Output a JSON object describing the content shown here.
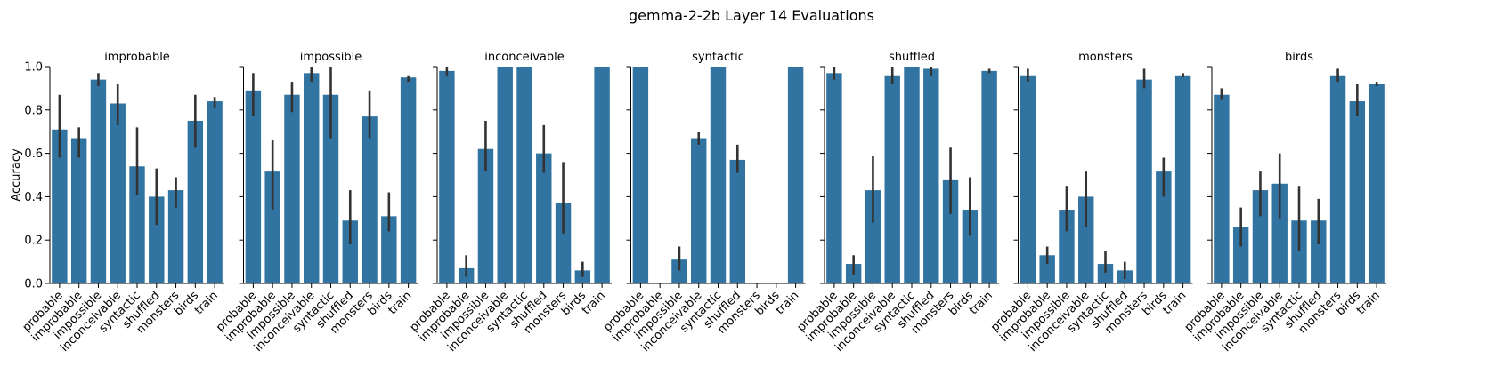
{
  "figure": {
    "title": "gemma-2-2b Layer 14 Evaluations",
    "colors": {
      "bar": "#3274a1",
      "error_bar": "#333333",
      "axis": "#000000"
    }
  },
  "chart_data": {
    "type": "bar",
    "ylabel": "Accuracy",
    "xlabel": "",
    "ylim": [
      0,
      1.0
    ],
    "yticks": [
      0.0,
      0.2,
      0.4,
      0.6,
      0.8,
      1.0
    ],
    "ytick_labels": [
      "0.0",
      "0.2",
      "0.4",
      "0.6",
      "0.8",
      "1.0"
    ],
    "categories": [
      "probable",
      "improbable",
      "impossible",
      "inconceivable",
      "syntactic",
      "shuffled",
      "monsters",
      "birds",
      "train"
    ],
    "grid": false,
    "panels": [
      {
        "title": "improbable",
        "values": [
          0.71,
          0.67,
          0.94,
          0.83,
          0.54,
          0.4,
          0.43,
          0.75,
          0.84
        ],
        "err_low": [
          0.58,
          0.58,
          0.91,
          0.73,
          0.41,
          0.27,
          0.35,
          0.63,
          0.81
        ],
        "err_high": [
          0.87,
          0.72,
          0.97,
          0.92,
          0.72,
          0.53,
          0.49,
          0.87,
          0.86
        ]
      },
      {
        "title": "impossible",
        "values": [
          0.89,
          0.52,
          0.87,
          0.97,
          0.87,
          0.29,
          0.77,
          0.31,
          0.95
        ],
        "err_low": [
          0.77,
          0.34,
          0.79,
          0.93,
          0.67,
          0.18,
          0.67,
          0.24,
          0.93
        ],
        "err_high": [
          0.97,
          0.66,
          0.93,
          1.0,
          1.0,
          0.43,
          0.89,
          0.42,
          0.96
        ]
      },
      {
        "title": "inconceivable",
        "values": [
          0.98,
          0.07,
          0.62,
          1.0,
          1.0,
          0.6,
          0.37,
          0.06,
          1.0
        ],
        "err_low": [
          0.96,
          0.03,
          0.52,
          1.0,
          1.0,
          0.51,
          0.23,
          0.03,
          1.0
        ],
        "err_high": [
          1.0,
          0.13,
          0.75,
          1.0,
          1.0,
          0.73,
          0.56,
          0.1,
          1.0
        ]
      },
      {
        "title": "syntactic",
        "values": [
          1.0,
          0.0,
          0.11,
          0.67,
          1.0,
          0.57,
          0.0,
          0.0,
          1.0
        ],
        "err_low": [
          1.0,
          0.0,
          0.06,
          0.64,
          1.0,
          0.51,
          0.0,
          0.0,
          1.0
        ],
        "err_high": [
          1.0,
          0.0,
          0.17,
          0.7,
          1.0,
          0.64,
          0.0,
          0.0,
          1.0
        ]
      },
      {
        "title": "shuffled",
        "values": [
          0.97,
          0.09,
          0.43,
          0.96,
          1.0,
          0.99,
          0.48,
          0.34,
          0.98
        ],
        "err_low": [
          0.94,
          0.04,
          0.28,
          0.92,
          1.0,
          0.96,
          0.32,
          0.22,
          0.97
        ],
        "err_high": [
          1.0,
          0.13,
          0.59,
          1.0,
          1.0,
          1.0,
          0.63,
          0.49,
          0.99
        ]
      },
      {
        "title": "monsters",
        "values": [
          0.96,
          0.13,
          0.34,
          0.4,
          0.09,
          0.06,
          0.94,
          0.52,
          0.96
        ],
        "err_low": [
          0.93,
          0.09,
          0.24,
          0.26,
          0.05,
          0.02,
          0.9,
          0.4,
          0.95
        ],
        "err_high": [
          0.99,
          0.17,
          0.45,
          0.52,
          0.15,
          0.1,
          0.99,
          0.58,
          0.97
        ]
      },
      {
        "title": "birds",
        "values": [
          0.87,
          0.26,
          0.43,
          0.46,
          0.29,
          0.29,
          0.96,
          0.84,
          0.92
        ],
        "err_low": [
          0.85,
          0.17,
          0.31,
          0.3,
          0.15,
          0.18,
          0.93,
          0.77,
          0.91
        ],
        "err_high": [
          0.9,
          0.35,
          0.52,
          0.6,
          0.45,
          0.39,
          0.99,
          0.92,
          0.93
        ]
      }
    ]
  }
}
